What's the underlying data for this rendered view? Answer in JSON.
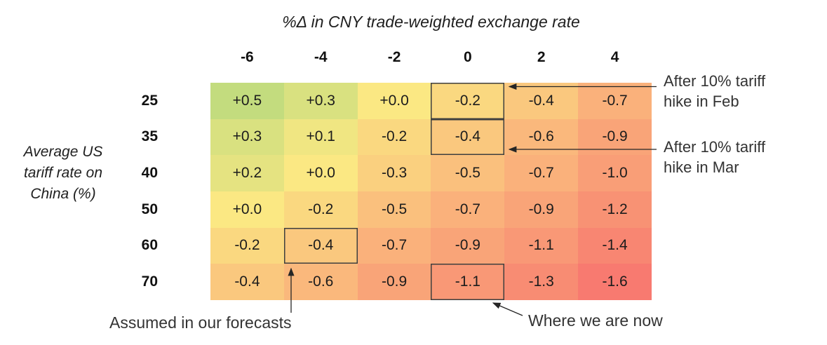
{
  "chart_data": {
    "type": "heatmap",
    "title": "%Δ in CNY trade-weighted exchange rate",
    "x_axis_title": "%Δ in CNY trade-weighted exchange rate",
    "y_axis_label_lines": [
      "Average US",
      "tariff rate on",
      "China (%)"
    ],
    "x_tick_labels": [
      "-6",
      "-4",
      "-2",
      "0",
      "2",
      "4"
    ],
    "y_tick_labels": [
      "25",
      "35",
      "40",
      "50",
      "60",
      "70"
    ],
    "values": [
      [
        0.5,
        0.3,
        0.0,
        -0.2,
        -0.4,
        -0.7
      ],
      [
        0.3,
        0.1,
        -0.2,
        -0.4,
        -0.6,
        -0.9
      ],
      [
        0.2,
        0.0,
        -0.3,
        -0.5,
        -0.7,
        -1.0
      ],
      [
        0.0,
        -0.2,
        -0.5,
        -0.7,
        -0.9,
        -1.2
      ],
      [
        -0.2,
        -0.4,
        -0.7,
        -0.9,
        -1.1,
        -1.4
      ],
      [
        -0.4,
        -0.6,
        -0.9,
        -1.1,
        -1.3,
        -1.6
      ]
    ],
    "display_values": [
      [
        "+0.5",
        "+0.3",
        "+0.0",
        "-0.2",
        "-0.4",
        "-0.7"
      ],
      [
        "+0.3",
        "+0.1",
        "-0.2",
        "-0.4",
        "-0.6",
        "-0.9"
      ],
      [
        "+0.2",
        "+0.0",
        "-0.3",
        "-0.5",
        "-0.7",
        "-1.0"
      ],
      [
        "+0.0",
        "-0.2",
        "-0.5",
        "-0.7",
        "-0.9",
        "-1.2"
      ],
      [
        "-0.2",
        "-0.4",
        "-0.7",
        "-0.9",
        "-1.1",
        "-1.4"
      ],
      [
        "-0.4",
        "-0.6",
        "-0.9",
        "-1.1",
        "-1.3",
        "-1.6"
      ]
    ],
    "cell_colors": [
      [
        "#C3DC7E",
        "#D9E180",
        "#FBE883",
        "#FAD880",
        "#FAC87E",
        "#FAB17B"
      ],
      [
        "#D9E180",
        "#F0E682",
        "#FAD880",
        "#FAC87E",
        "#FAB87C",
        "#F9A478"
      ],
      [
        "#E5E381",
        "#FBE883",
        "#FAD07F",
        "#FAC07D",
        "#FAB17B",
        "#F99E77"
      ],
      [
        "#FBE883",
        "#FAD880",
        "#FAC07D",
        "#FAB17B",
        "#F9A478",
        "#F89274"
      ],
      [
        "#FAD880",
        "#FAC87E",
        "#FAB17B",
        "#F9A478",
        "#F99876",
        "#F88672"
      ],
      [
        "#FAC87E",
        "#FAB87C",
        "#F9A478",
        "#F99876",
        "#F88C73",
        "#F87A70"
      ]
    ],
    "colors": {
      "positive_end": "#C3DC7E",
      "zero": "#FBE883",
      "negative_end": "#F87A70",
      "highlight_border": "#3F3F3F",
      "arrow": "#262626"
    },
    "highlighted_cells": [
      {
        "row": 0,
        "col": 3,
        "value": "-0.2",
        "note": "After 10% tariff hike in Feb"
      },
      {
        "row": 1,
        "col": 3,
        "value": "-0.4",
        "note": "After 10% tariff hike in Mar"
      },
      {
        "row": 4,
        "col": 1,
        "value": "-0.4",
        "note": "Assumed in our forecasts"
      },
      {
        "row": 5,
        "col": 3,
        "value": "-1.1",
        "note": "Where we are now"
      }
    ],
    "annotations": {
      "feb": {
        "lines": [
          "After 10% tariff",
          "hike in Feb"
        ]
      },
      "mar": {
        "lines": [
          "After 10% tariff",
          "hike in Mar"
        ]
      },
      "forecast": {
        "text": "Assumed in our forecasts"
      },
      "now": {
        "text": "Where we are now"
      }
    },
    "legend": "none",
    "grid": "off"
  }
}
